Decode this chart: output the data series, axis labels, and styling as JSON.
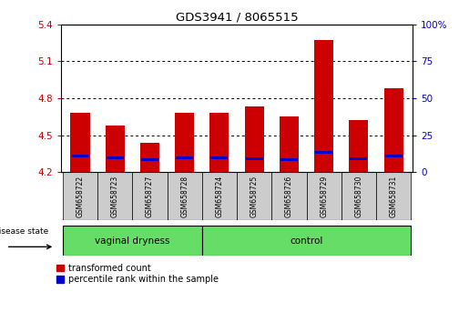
{
  "title": "GDS3941 / 8065515",
  "samples": [
    "GSM658722",
    "GSM658723",
    "GSM658727",
    "GSM658728",
    "GSM658724",
    "GSM658725",
    "GSM658726",
    "GSM658729",
    "GSM658730",
    "GSM658731"
  ],
  "red_values": [
    4.68,
    4.58,
    4.44,
    4.68,
    4.68,
    4.73,
    4.65,
    5.27,
    4.62,
    4.88
  ],
  "blue_values": [
    4.33,
    4.32,
    4.3,
    4.32,
    4.32,
    4.31,
    4.3,
    4.36,
    4.31,
    4.33
  ],
  "baseline": 4.2,
  "ylim_left": [
    4.2,
    5.4
  ],
  "ylim_right": [
    0,
    100
  ],
  "yticks_left": [
    4.2,
    4.5,
    4.8,
    5.1,
    5.4
  ],
  "yticks_right": [
    0,
    25,
    50,
    75,
    100
  ],
  "ytick_labels_left": [
    "4.2",
    "4.5",
    "4.8",
    "5.1",
    "5.4"
  ],
  "ytick_labels_right": [
    "0",
    "25",
    "50",
    "75",
    "100%"
  ],
  "group1_label": "vaginal dryness",
  "group1_count": 4,
  "group2_label": "control",
  "group2_count": 6,
  "disease_state_label": "disease state",
  "legend_red": "transformed count",
  "legend_blue": "percentile rank within the sample",
  "bar_color": "#cc0000",
  "blue_color": "#0000cc",
  "bar_width": 0.55,
  "group_bg_color": "#66dd66",
  "sample_bg_color": "#cccccc",
  "plot_bg_color": "#ffffff",
  "left_tick_color": "#cc0000",
  "right_tick_color": "#0000cc",
  "grid_yticks": [
    4.5,
    4.8,
    5.1
  ]
}
